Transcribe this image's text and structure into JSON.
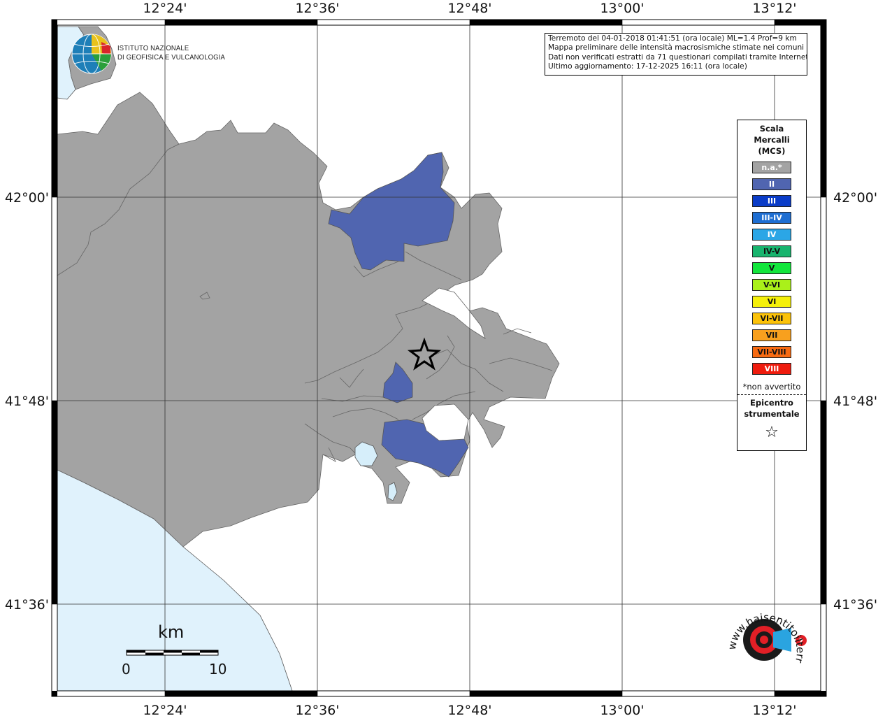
{
  "header": {
    "institute_name_line1": "ISTITUTO NAZIONALE",
    "institute_name_line2": "DI GEOFISICA E VULCANOLOGIA"
  },
  "info": {
    "line1": "Terremoto del 04-01-2018 01:41:51 (ora locale) ML=1.4 Prof=9 km",
    "line2": "Mappa preliminare delle intensità macrosismiche stimate nei comuni",
    "line3": "Dati non verificati estratti da 71 questionari compilati tramite Internet.",
    "line4": "Ultimo aggiornamento: 17-12-2025 16:11 (ora locale)"
  },
  "axes": {
    "lon_labels": [
      "12°24'",
      "12°36'",
      "12°48'",
      "13°00'",
      "13°12'"
    ],
    "lat_labels": [
      "42°00'",
      "41°48'",
      "41°36'"
    ]
  },
  "legend": {
    "title_line1": "Scala",
    "title_line2": "Mercalli",
    "title_line3": "(MCS)",
    "items": [
      {
        "label": "n.a.*",
        "color": "#a3a3a3",
        "text_color": "#ffffff"
      },
      {
        "label": "II",
        "color": "#5065b0",
        "text_color": "#ffffff"
      },
      {
        "label": "III",
        "color": "#0a3cc8",
        "text_color": "#ffffff"
      },
      {
        "label": "III-IV",
        "color": "#1e6ed2",
        "text_color": "#ffffff"
      },
      {
        "label": "IV",
        "color": "#2ba6e6",
        "text_color": "#ffffff"
      },
      {
        "label": "IV-V",
        "color": "#18b46e",
        "text_color": "#111111"
      },
      {
        "label": "V",
        "color": "#12e63c",
        "text_color": "#111111"
      },
      {
        "label": "V-VI",
        "color": "#aaf01a",
        "text_color": "#111111"
      },
      {
        "label": "VI",
        "color": "#f5f00a",
        "text_color": "#111111"
      },
      {
        "label": "VI-VII",
        "color": "#fbc20a",
        "text_color": "#111111"
      },
      {
        "label": "VII",
        "color": "#f8a01e",
        "text_color": "#111111"
      },
      {
        "label": "VII-VIII",
        "color": "#f76a12",
        "text_color": "#111111"
      },
      {
        "label": "VIII",
        "color": "#ef1c0e",
        "text_color": "#ffffff"
      }
    ],
    "note": "*non avvertito",
    "epicenter_line1": "Epicentro",
    "epicenter_line2": "strumentale",
    "epicenter_symbol": "☆"
  },
  "scale_bar": {
    "unit": "km",
    "start": "0",
    "end": "10"
  },
  "watermark": {
    "text": "www.haisentitoilterremoto.it"
  },
  "colors": {
    "land_not_felt": "#a3a3a3",
    "intensity_II": "#5065b0",
    "sea": "#e0f2fc",
    "lake": "#d6eefa"
  }
}
